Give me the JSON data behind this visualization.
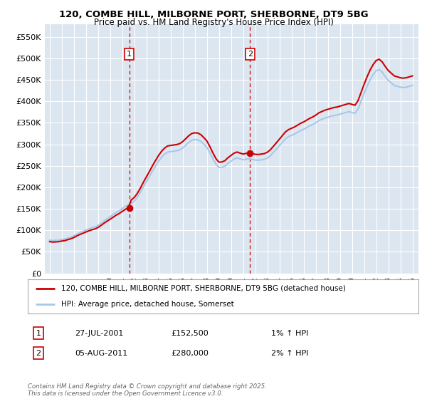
{
  "title": "120, COMBE HILL, MILBORNE PORT, SHERBORNE, DT9 5BG",
  "subtitle": "Price paid vs. HM Land Registry's House Price Index (HPI)",
  "legend_line1": "120, COMBE HILL, MILBORNE PORT, SHERBORNE, DT9 5BG (detached house)",
  "legend_line2": "HPI: Average price, detached house, Somerset",
  "annotation1_label": "1",
  "annotation1_date": "27-JUL-2001",
  "annotation1_price": "£152,500",
  "annotation1_hpi": "1% ↑ HPI",
  "annotation2_label": "2",
  "annotation2_date": "05-AUG-2011",
  "annotation2_price": "£280,000",
  "annotation2_hpi": "2% ↑ HPI",
  "footer": "Contains HM Land Registry data © Crown copyright and database right 2025.\nThis data is licensed under the Open Government Licence v3.0.",
  "bg_color": "#ffffff",
  "plot_bg_color": "#dce6f1",
  "grid_color": "#ffffff",
  "hpi_color": "#a8c8e8",
  "price_color": "#cc0000",
  "vline_color": "#cc0000",
  "ylim": [
    0,
    580000
  ],
  "yticks": [
    0,
    50000,
    100000,
    150000,
    200000,
    250000,
    300000,
    350000,
    400000,
    450000,
    500000,
    550000
  ],
  "hpi_dates": [
    1995.0,
    1995.25,
    1995.5,
    1995.75,
    1996.0,
    1996.25,
    1996.5,
    1996.75,
    1997.0,
    1997.25,
    1997.5,
    1997.75,
    1998.0,
    1998.25,
    1998.5,
    1998.75,
    1999.0,
    1999.25,
    1999.5,
    1999.75,
    2000.0,
    2000.25,
    2000.5,
    2000.75,
    2001.0,
    2001.25,
    2001.5,
    2001.75,
    2002.0,
    2002.25,
    2002.5,
    2002.75,
    2003.0,
    2003.25,
    2003.5,
    2003.75,
    2004.0,
    2004.25,
    2004.5,
    2004.75,
    2005.0,
    2005.25,
    2005.5,
    2005.75,
    2006.0,
    2006.25,
    2006.5,
    2006.75,
    2007.0,
    2007.25,
    2007.5,
    2007.75,
    2008.0,
    2008.25,
    2008.5,
    2008.75,
    2009.0,
    2009.25,
    2009.5,
    2009.75,
    2010.0,
    2010.25,
    2010.5,
    2010.75,
    2011.0,
    2011.25,
    2011.5,
    2011.75,
    2012.0,
    2012.25,
    2012.5,
    2012.75,
    2013.0,
    2013.25,
    2013.5,
    2013.75,
    2014.0,
    2014.25,
    2014.5,
    2014.75,
    2015.0,
    2015.25,
    2015.5,
    2015.75,
    2016.0,
    2016.25,
    2016.5,
    2016.75,
    2017.0,
    2017.25,
    2017.5,
    2017.75,
    2018.0,
    2018.25,
    2018.5,
    2018.75,
    2019.0,
    2019.25,
    2019.5,
    2019.75,
    2020.0,
    2020.25,
    2020.5,
    2020.75,
    2021.0,
    2021.25,
    2021.5,
    2021.75,
    2022.0,
    2022.25,
    2022.5,
    2022.75,
    2023.0,
    2023.25,
    2023.5,
    2023.75,
    2024.0,
    2024.25,
    2024.5,
    2024.75,
    2025.0
  ],
  "hpi_values": [
    77000,
    76000,
    76500,
    77000,
    78500,
    79500,
    82000,
    84000,
    87000,
    91000,
    94500,
    97500,
    100500,
    103500,
    106000,
    108000,
    111500,
    116500,
    122000,
    127000,
    131500,
    136500,
    141500,
    145500,
    150500,
    155500,
    159500,
    162500,
    168000,
    177000,
    188500,
    201500,
    213500,
    225500,
    238000,
    249500,
    260500,
    270000,
    277000,
    282000,
    283000,
    284000,
    285000,
    287000,
    291500,
    298000,
    304500,
    309500,
    311000,
    310500,
    307000,
    300500,
    293000,
    280500,
    266500,
    254000,
    246000,
    246500,
    249500,
    256000,
    261000,
    266000,
    268500,
    266000,
    264000,
    265500,
    266500,
    265000,
    263500,
    263000,
    264000,
    265000,
    268000,
    273500,
    281000,
    289000,
    297000,
    305000,
    313000,
    318000,
    321000,
    324000,
    328000,
    332000,
    335000,
    339000,
    343000,
    346000,
    350000,
    355000,
    358000,
    361000,
    363000,
    365000,
    367000,
    368000,
    370000,
    372000,
    374000,
    376000,
    374000,
    372000,
    382000,
    400000,
    418000,
    435000,
    450000,
    462000,
    471000,
    474000,
    468000,
    458000,
    449000,
    443000,
    437000,
    435000,
    433000,
    432000,
    433000,
    435000,
    437000
  ],
  "purchase1_date": 2001.58,
  "purchase1_value": 152500,
  "purchase2_date": 2011.58,
  "purchase2_value": 280000,
  "first_sale_date": 1995.75,
  "first_sale_value": 83000
}
